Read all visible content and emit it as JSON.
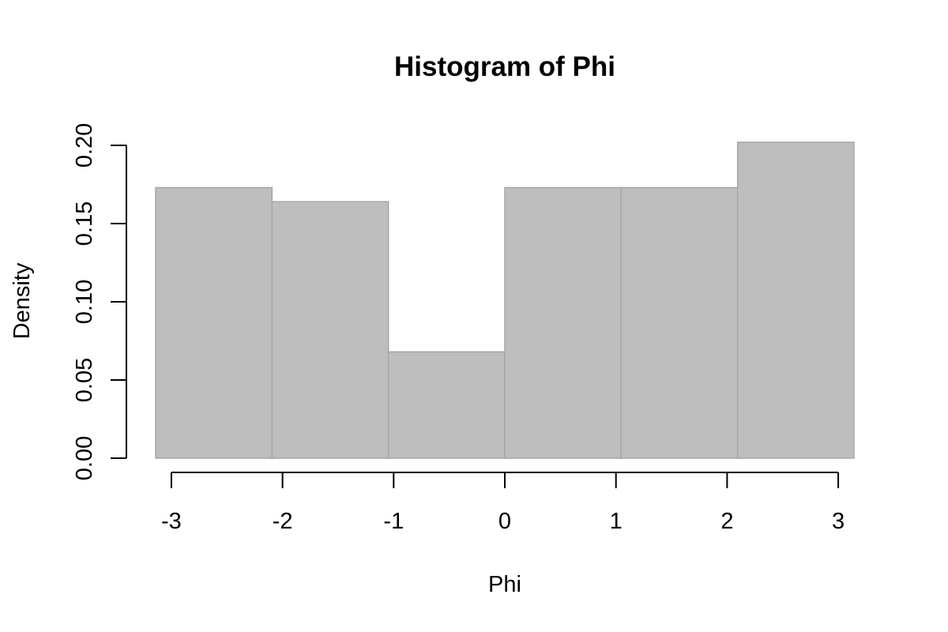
{
  "chart_data": {
    "type": "bar",
    "title": "Histogram of Phi",
    "xlabel": "Phi",
    "ylabel": "Density",
    "bins": [
      {
        "x0": -3.1416,
        "x1": -2.0944,
        "density": 0.173
      },
      {
        "x0": -2.0944,
        "x1": -1.0472,
        "density": 0.164
      },
      {
        "x0": -1.0472,
        "x1": 0.0,
        "density": 0.068
      },
      {
        "x0": 0.0,
        "x1": 1.0472,
        "density": 0.173
      },
      {
        "x0": 1.0472,
        "x1": 2.0944,
        "density": 0.173
      },
      {
        "x0": 2.0944,
        "x1": 3.1416,
        "density": 0.202
      }
    ],
    "xticks": [
      -3,
      -2,
      -1,
      0,
      1,
      2,
      3
    ],
    "xtick_labels": [
      "-3",
      "-2",
      "-1",
      "0",
      "1",
      "2",
      "3"
    ],
    "yticks": [
      0.0,
      0.05,
      0.1,
      0.15,
      0.2
    ],
    "ytick_labels": [
      "0.00",
      "0.05",
      "0.10",
      "0.15",
      "0.20"
    ],
    "xlim": [
      -3.1416,
      3.1416
    ],
    "ylim": [
      0,
      0.2
    ],
    "grid": false,
    "bar_color": "#bebebe",
    "bar_border_color": "#a6a6a6"
  }
}
